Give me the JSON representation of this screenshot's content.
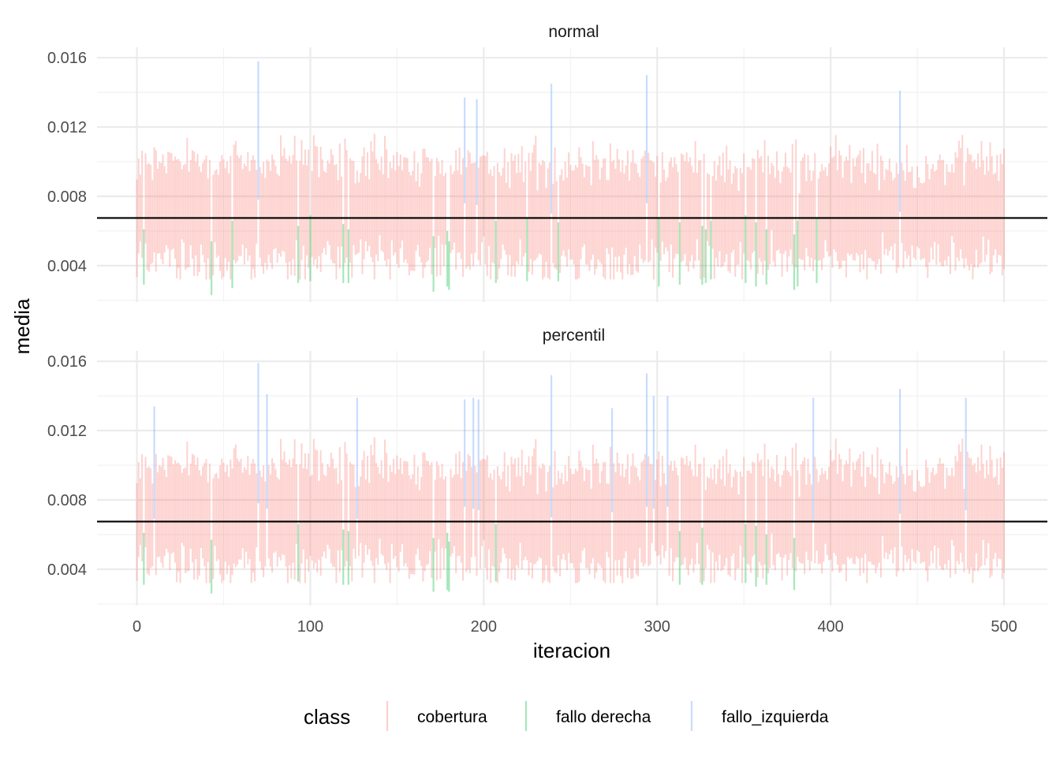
{
  "chart_data": {
    "type": "bar",
    "mark": "interval-segments",
    "xlabel": "iteracion",
    "ylabel": "media",
    "xlim": [
      -23,
      525
    ],
    "ylim": [
      0.0019,
      0.0166
    ],
    "x_ticks": [
      0,
      100,
      200,
      300,
      400,
      500
    ],
    "x_tick_labels": [
      "0",
      "100",
      "200",
      "300",
      "400",
      "500"
    ],
    "y_ticks": [
      0.004,
      0.008,
      0.012,
      0.016
    ],
    "y_tick_labels": [
      "0.004",
      "0.008",
      "0.012",
      "0.016"
    ],
    "grid": true,
    "reference_line": 0.00675,
    "legend": {
      "title": "class",
      "position": "bottom",
      "entries": [
        {
          "label": "cobertura",
          "color": "#F8766D"
        },
        {
          "label": "fallo derecha",
          "color": "#00BA38"
        },
        {
          "label": "fallo_izquierda",
          "color": "#619CFF"
        }
      ]
    },
    "n_iterations": 500,
    "panels": [
      {
        "label": "normal",
        "fallo_derecha": [
          {
            "x": 4,
            "low": 0.0029,
            "high": 0.0061
          },
          {
            "x": 43,
            "low": 0.0023,
            "high": 0.0054
          },
          {
            "x": 55,
            "low": 0.0027,
            "high": 0.0066
          },
          {
            "x": 93,
            "low": 0.003,
            "high": 0.0063
          },
          {
            "x": 100,
            "low": 0.0031,
            "high": 0.0069
          },
          {
            "x": 119,
            "low": 0.003,
            "high": 0.0064
          },
          {
            "x": 122,
            "low": 0.003,
            "high": 0.0061
          },
          {
            "x": 171,
            "low": 0.0025,
            "high": 0.0057
          },
          {
            "x": 179,
            "low": 0.0028,
            "high": 0.006
          },
          {
            "x": 180,
            "low": 0.0026,
            "high": 0.0054
          },
          {
            "x": 207,
            "low": 0.003,
            "high": 0.0066
          },
          {
            "x": 225,
            "low": 0.0031,
            "high": 0.0067
          },
          {
            "x": 243,
            "low": 0.0031,
            "high": 0.0065
          },
          {
            "x": 301,
            "low": 0.0028,
            "high": 0.0067
          },
          {
            "x": 313,
            "low": 0.0029,
            "high": 0.0065
          },
          {
            "x": 326,
            "low": 0.0029,
            "high": 0.0063
          },
          {
            "x": 328,
            "low": 0.003,
            "high": 0.0061
          },
          {
            "x": 331,
            "low": 0.0032,
            "high": 0.0066
          },
          {
            "x": 351,
            "low": 0.003,
            "high": 0.0069
          },
          {
            "x": 357,
            "low": 0.0028,
            "high": 0.0065
          },
          {
            "x": 363,
            "low": 0.0029,
            "high": 0.0061
          },
          {
            "x": 379,
            "low": 0.0026,
            "high": 0.0058
          },
          {
            "x": 381,
            "low": 0.0028,
            "high": 0.0066
          },
          {
            "x": 392,
            "low": 0.003,
            "high": 0.0068
          }
        ],
        "fallo_izquierda": [
          {
            "x": 70,
            "low": 0.0078,
            "high": 0.0158
          },
          {
            "x": 189,
            "low": 0.0076,
            "high": 0.0137
          },
          {
            "x": 196,
            "low": 0.0075,
            "high": 0.0136
          },
          {
            "x": 239,
            "low": 0.007,
            "high": 0.0145
          },
          {
            "x": 294,
            "low": 0.0076,
            "high": 0.015
          },
          {
            "x": 440,
            "low": 0.0071,
            "high": 0.0141
          }
        ]
      },
      {
        "label": "percentil",
        "fallo_derecha": [
          {
            "x": 4,
            "low": 0.0031,
            "high": 0.0061
          },
          {
            "x": 43,
            "low": 0.0026,
            "high": 0.0057
          },
          {
            "x": 93,
            "low": 0.0033,
            "high": 0.0066
          },
          {
            "x": 119,
            "low": 0.0031,
            "high": 0.0063
          },
          {
            "x": 122,
            "low": 0.0031,
            "high": 0.0062
          },
          {
            "x": 171,
            "low": 0.0027,
            "high": 0.0058
          },
          {
            "x": 179,
            "low": 0.0028,
            "high": 0.0061
          },
          {
            "x": 180,
            "low": 0.0027,
            "high": 0.0056
          },
          {
            "x": 207,
            "low": 0.0033,
            "high": 0.0066
          },
          {
            "x": 313,
            "low": 0.0031,
            "high": 0.0062
          },
          {
            "x": 326,
            "low": 0.0031,
            "high": 0.0064
          },
          {
            "x": 351,
            "low": 0.0032,
            "high": 0.0066
          },
          {
            "x": 357,
            "low": 0.003,
            "high": 0.0065
          },
          {
            "x": 363,
            "low": 0.0031,
            "high": 0.006
          },
          {
            "x": 379,
            "low": 0.0028,
            "high": 0.0058
          }
        ],
        "fallo_izquierda": [
          {
            "x": 10,
            "low": 0.0069,
            "high": 0.0134
          },
          {
            "x": 70,
            "low": 0.0078,
            "high": 0.0159
          },
          {
            "x": 75,
            "low": 0.0075,
            "high": 0.0141
          },
          {
            "x": 127,
            "low": 0.0069,
            "high": 0.0139
          },
          {
            "x": 189,
            "low": 0.0076,
            "high": 0.0138
          },
          {
            "x": 194,
            "low": 0.0075,
            "high": 0.0139
          },
          {
            "x": 197,
            "low": 0.0074,
            "high": 0.0138
          },
          {
            "x": 239,
            "low": 0.007,
            "high": 0.0152
          },
          {
            "x": 274,
            "low": 0.0073,
            "high": 0.0133
          },
          {
            "x": 294,
            "low": 0.0076,
            "high": 0.0153
          },
          {
            "x": 298,
            "low": 0.0075,
            "high": 0.014
          },
          {
            "x": 306,
            "low": 0.0076,
            "high": 0.014
          },
          {
            "x": 390,
            "low": 0.0068,
            "high": 0.0139
          },
          {
            "x": 440,
            "low": 0.0072,
            "high": 0.0144
          },
          {
            "x": 478,
            "low": 0.0074,
            "high": 0.0139
          }
        ]
      }
    ]
  }
}
